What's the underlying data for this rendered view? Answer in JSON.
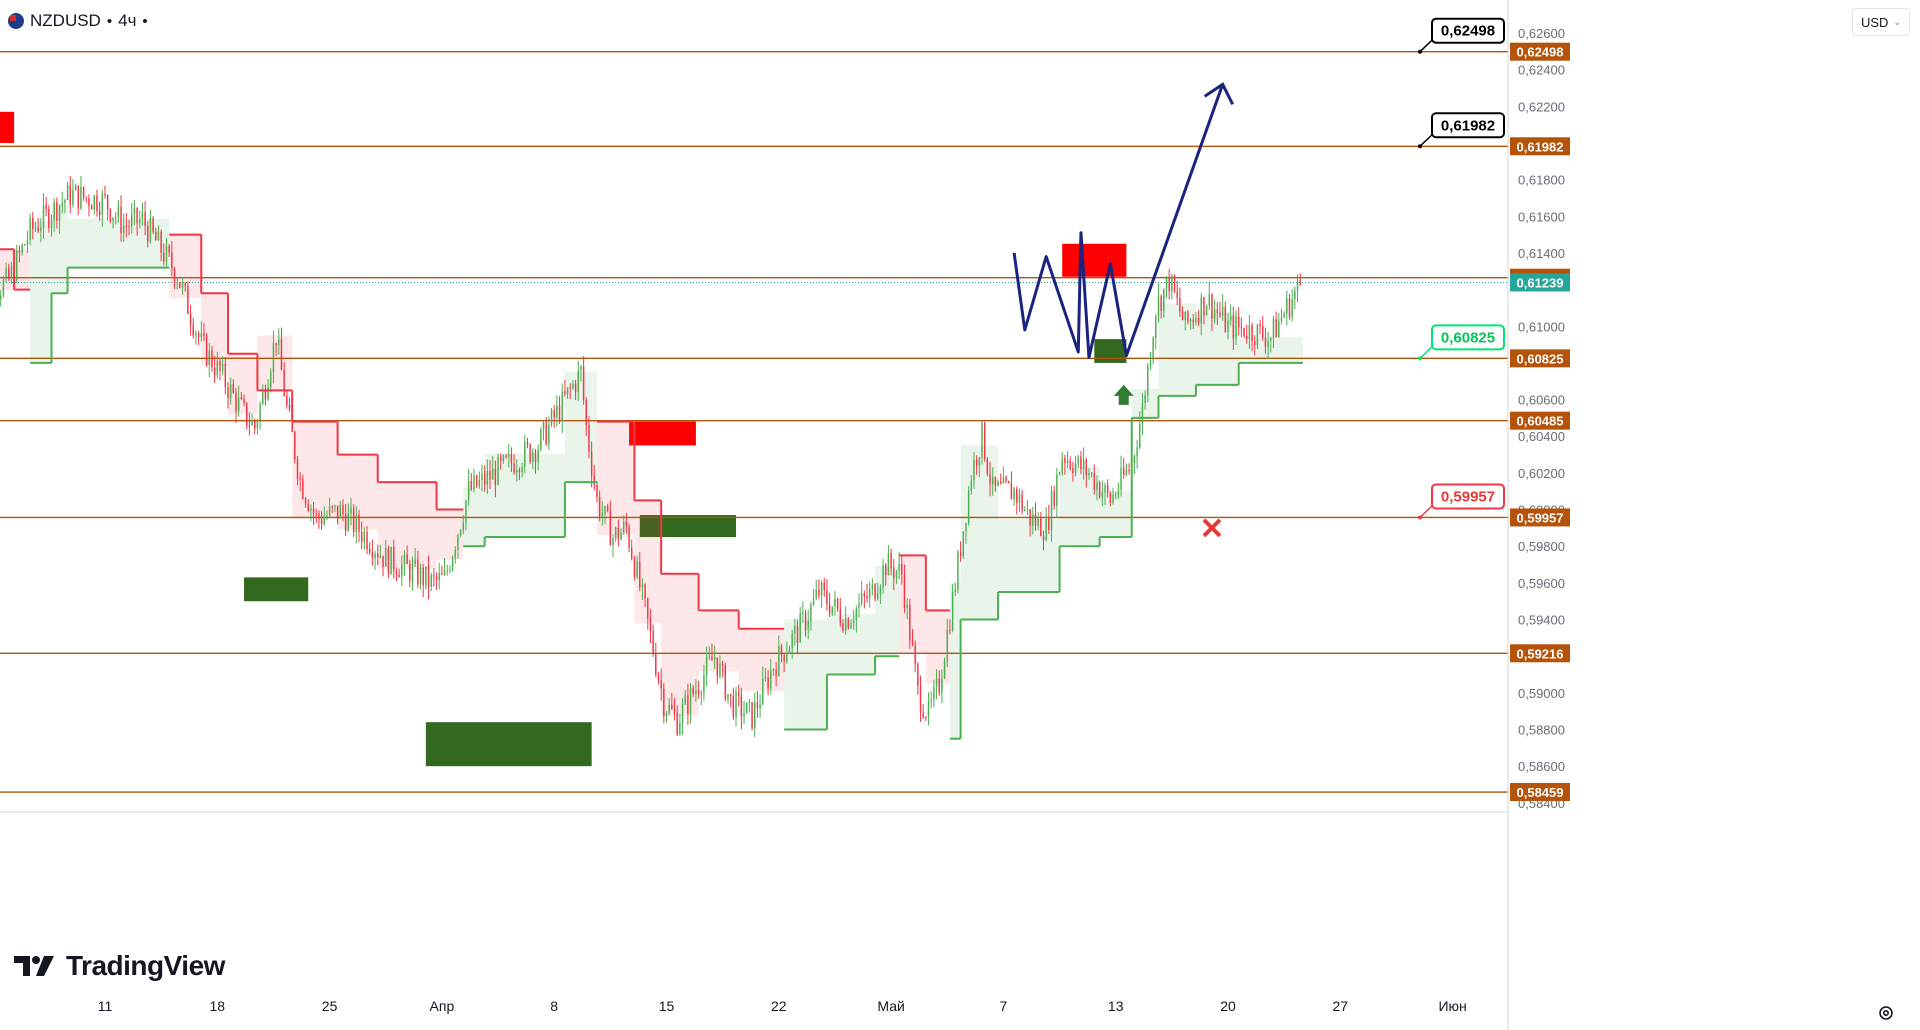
{
  "header": {
    "symbol": "NZDUSD",
    "separator": "•",
    "timeframe": "4ч",
    "trailing_dot": "•"
  },
  "currency_selector": {
    "label": "USD",
    "caret_icon": "chevron-down-icon"
  },
  "logo": {
    "text": "TradingView",
    "icon": "tradingview-logo-icon"
  },
  "settings": {
    "icon": "gear-icon"
  },
  "chart_data": {
    "type": "candlestick",
    "title": "",
    "xlabel": "",
    "ylabel": "",
    "ylim": [
      0.5835,
      0.6278
    ],
    "grid": false,
    "y_ticks": [
      "0,62600",
      "0,62400",
      "0,62200",
      "0,61800",
      "0,61600",
      "0,61400",
      "0,61000",
      "0,60600",
      "0,60400",
      "0,60200",
      "0,60000",
      "0,59800",
      "0,59600",
      "0,59400",
      "0,59000",
      "0,58800",
      "0,58600",
      "0,58400"
    ],
    "y_tick_values": [
      0.626,
      0.624,
      0.622,
      0.618,
      0.616,
      0.614,
      0.61,
      0.606,
      0.604,
      0.602,
      0.6,
      0.598,
      0.596,
      0.594,
      0.59,
      0.588,
      0.586,
      0.584
    ],
    "x_ticks": [
      "11",
      "18",
      "25",
      "Апр",
      "8",
      "15",
      "22",
      "Май",
      "7",
      "13",
      "20",
      "27",
      "Июн"
    ],
    "x_tick_bars": [
      0,
      42,
      84,
      126,
      168,
      210,
      252,
      294,
      336,
      378,
      420,
      462,
      504
    ],
    "bars_before_first_tick": 48,
    "horizontal_levels": [
      {
        "value": 0.62498,
        "label": "0,62498"
      },
      {
        "value": 0.61982,
        "label": "0,61982"
      },
      {
        "value": 0.61265,
        "label": "0,61265"
      },
      {
        "value": 0.60825,
        "label": "0,60825"
      },
      {
        "value": 0.60485,
        "label": "0,60485"
      },
      {
        "value": 0.59957,
        "label": "0,59957"
      },
      {
        "value": 0.59216,
        "label": "0,59216"
      },
      {
        "value": 0.58459,
        "label": "0,58459"
      }
    ],
    "current_price": {
      "value": 0.61239,
      "label": "0,61239"
    },
    "target_callouts": [
      {
        "value": 0.62498,
        "label": "0,62498",
        "style": "target"
      },
      {
        "value": 0.61982,
        "label": "0,61982",
        "style": "target"
      },
      {
        "value": 0.60825,
        "label": "0,60825",
        "style": "entry"
      },
      {
        "value": 0.59957,
        "label": "0,59957",
        "style": "stop"
      }
    ],
    "price_path": [
      [
        0,
        0.6112
      ],
      [
        12,
        0.6125
      ],
      [
        20,
        0.6152
      ],
      [
        35,
        0.6172
      ],
      [
        48,
        0.6168
      ],
      [
        55,
        0.6155
      ],
      [
        62,
        0.6158
      ],
      [
        75,
        0.6128
      ],
      [
        84,
        0.609
      ],
      [
        92,
        0.6072
      ],
      [
        100,
        0.6052
      ],
      [
        104,
        0.6045
      ],
      [
        108,
        0.6068
      ],
      [
        112,
        0.6095
      ],
      [
        116,
        0.6055
      ],
      [
        121,
        0.6016
      ],
      [
        127,
        0.5995
      ],
      [
        136,
        0.5999
      ],
      [
        146,
        0.5985
      ],
      [
        153,
        0.5973
      ],
      [
        162,
        0.5967
      ],
      [
        170,
        0.596
      ],
      [
        175,
        0.5962
      ],
      [
        184,
        0.601
      ],
      [
        194,
        0.602
      ],
      [
        210,
        0.6035
      ],
      [
        222,
        0.6065
      ],
      [
        226,
        0.6075
      ],
      [
        228,
        0.6045
      ],
      [
        232,
        0.6005
      ],
      [
        238,
        0.5985
      ],
      [
        243,
        0.599
      ],
      [
        250,
        0.5945
      ],
      [
        257,
        0.5895
      ],
      [
        262,
        0.5885
      ],
      [
        268,
        0.59
      ],
      [
        276,
        0.592
      ],
      [
        282,
        0.5895
      ],
      [
        290,
        0.5887
      ],
      [
        298,
        0.5915
      ],
      [
        310,
        0.594
      ],
      [
        315,
        0.5955
      ],
      [
        325,
        0.594
      ],
      [
        335,
        0.5955
      ],
      [
        340,
        0.597
      ],
      [
        346,
        0.5965
      ],
      [
        352,
        0.59
      ],
      [
        356,
        0.5888
      ],
      [
        360,
        0.5905
      ],
      [
        366,
        0.596
      ],
      [
        372,
        0.602
      ],
      [
        376,
        0.604
      ],
      [
        380,
        0.601
      ],
      [
        388,
        0.601
      ],
      [
        394,
        0.5995
      ],
      [
        400,
        0.599
      ],
      [
        406,
        0.603
      ],
      [
        416,
        0.602
      ],
      [
        424,
        0.6005
      ],
      [
        432,
        0.6025
      ],
      [
        436,
        0.6055
      ],
      [
        441,
        0.611
      ],
      [
        446,
        0.6125
      ],
      [
        452,
        0.61
      ],
      [
        460,
        0.6115
      ],
      [
        468,
        0.61
      ],
      [
        476,
        0.6098
      ],
      [
        484,
        0.6094
      ],
      [
        488,
        0.6105
      ],
      [
        492,
        0.6115
      ],
      [
        495,
        0.6123
      ]
    ],
    "supertrend": [
      {
        "from_bar": 0,
        "to_bar": 14,
        "trend": "down",
        "value": 0.6142
      },
      {
        "from_bar": 14,
        "to_bar": 20,
        "trend": "down",
        "value": 0.612
      },
      {
        "from_bar": 20,
        "to_bar": 28,
        "trend": "up",
        "value": 0.608
      },
      {
        "from_bar": 28,
        "to_bar": 34,
        "trend": "up",
        "value": 0.6118
      },
      {
        "from_bar": 34,
        "to_bar": 72,
        "trend": "up",
        "value": 0.6132
      },
      {
        "from_bar": 72,
        "to_bar": 84,
        "trend": "down",
        "value": 0.615
      },
      {
        "from_bar": 84,
        "to_bar": 94,
        "trend": "down",
        "value": 0.6118
      },
      {
        "from_bar": 94,
        "to_bar": 105,
        "trend": "down",
        "value": 0.6085
      },
      {
        "from_bar": 105,
        "to_bar": 118,
        "trend": "down",
        "value": 0.6065
      },
      {
        "from_bar": 118,
        "to_bar": 135,
        "trend": "down",
        "value": 0.6048
      },
      {
        "from_bar": 135,
        "to_bar": 150,
        "trend": "down",
        "value": 0.603
      },
      {
        "from_bar": 150,
        "to_bar": 172,
        "trend": "down",
        "value": 0.6015
      },
      {
        "from_bar": 172,
        "to_bar": 182,
        "trend": "down",
        "value": 0.6
      },
      {
        "from_bar": 182,
        "to_bar": 190,
        "trend": "up",
        "value": 0.598
      },
      {
        "from_bar": 190,
        "to_bar": 220,
        "trend": "up",
        "value": 0.5985
      },
      {
        "from_bar": 220,
        "to_bar": 232,
        "trend": "up",
        "value": 0.6015
      },
      {
        "from_bar": 232,
        "to_bar": 246,
        "trend": "down",
        "value": 0.6048
      },
      {
        "from_bar": 246,
        "to_bar": 256,
        "trend": "down",
        "value": 0.6005
      },
      {
        "from_bar": 256,
        "to_bar": 270,
        "trend": "down",
        "value": 0.5965
      },
      {
        "from_bar": 270,
        "to_bar": 285,
        "trend": "down",
        "value": 0.5945
      },
      {
        "from_bar": 285,
        "to_bar": 302,
        "trend": "down",
        "value": 0.5935
      },
      {
        "from_bar": 302,
        "to_bar": 318,
        "trend": "up",
        "value": 0.588
      },
      {
        "from_bar": 318,
        "to_bar": 336,
        "trend": "up",
        "value": 0.591
      },
      {
        "from_bar": 336,
        "to_bar": 345,
        "trend": "up",
        "value": 0.592
      },
      {
        "from_bar": 345,
        "to_bar": 355,
        "trend": "down",
        "value": 0.5975
      },
      {
        "from_bar": 355,
        "to_bar": 364,
        "trend": "down",
        "value": 0.5945
      },
      {
        "from_bar": 364,
        "to_bar": 368,
        "trend": "up",
        "value": 0.5875
      },
      {
        "from_bar": 368,
        "to_bar": 382,
        "trend": "up",
        "value": 0.594
      },
      {
        "from_bar": 382,
        "to_bar": 405,
        "trend": "up",
        "value": 0.5955
      },
      {
        "from_bar": 405,
        "to_bar": 420,
        "trend": "up",
        "value": 0.598
      },
      {
        "from_bar": 420,
        "to_bar": 432,
        "trend": "up",
        "value": 0.5985
      },
      {
        "from_bar": 432,
        "to_bar": 442,
        "trend": "up",
        "value": 0.605
      },
      {
        "from_bar": 442,
        "to_bar": 456,
        "trend": "up",
        "value": 0.6062
      },
      {
        "from_bar": 456,
        "to_bar": 472,
        "trend": "up",
        "value": 0.6068
      },
      {
        "from_bar": 472,
        "to_bar": 496,
        "trend": "up",
        "value": 0.608
      }
    ],
    "zones": [
      {
        "kind": "supply",
        "from_bar": -2,
        "to_bar": 14,
        "low": 0.62,
        "high": 0.6217
      },
      {
        "kind": "demand",
        "from_bar": -2,
        "to_bar": 6,
        "low": 0.607,
        "high": 0.6083
      },
      {
        "kind": "demand",
        "from_bar": 100,
        "to_bar": 124,
        "low": 0.595,
        "high": 0.5963
      },
      {
        "kind": "demand",
        "from_bar": 168,
        "to_bar": 230,
        "low": 0.586,
        "high": 0.5884
      },
      {
        "kind": "supply",
        "from_bar": 244,
        "to_bar": 269,
        "low": 0.6035,
        "high": 0.6048
      },
      {
        "kind": "demand",
        "from_bar": 248,
        "to_bar": 284,
        "low": 0.5985,
        "high": 0.5997
      },
      {
        "kind": "supply",
        "from_bar": 406,
        "to_bar": 430,
        "low": 0.6127,
        "high": 0.6145
      },
      {
        "kind": "demand",
        "from_bar": 418,
        "to_bar": 430,
        "low": 0.608,
        "high": 0.6093
      }
    ],
    "forecast_path": [
      {
        "bar": 388,
        "value": 0.614
      },
      {
        "bar": 392,
        "value": 0.6098
      },
      {
        "bar": 400,
        "value": 0.6138
      },
      {
        "bar": 412,
        "value": 0.6086
      },
      {
        "bar": 413,
        "value": 0.6151
      },
      {
        "bar": 416,
        "value": 0.6083
      },
      {
        "bar": 424,
        "value": 0.6134
      },
      {
        "bar": 430,
        "value": 0.6084
      },
      {
        "bar": 466,
        "value": 0.6232
      }
    ],
    "markers": [
      {
        "kind": "buy-arrow",
        "bar": 429,
        "value": 0.6068
      },
      {
        "kind": "stop-cross",
        "bar": 462,
        "value": 0.599
      }
    ]
  }
}
